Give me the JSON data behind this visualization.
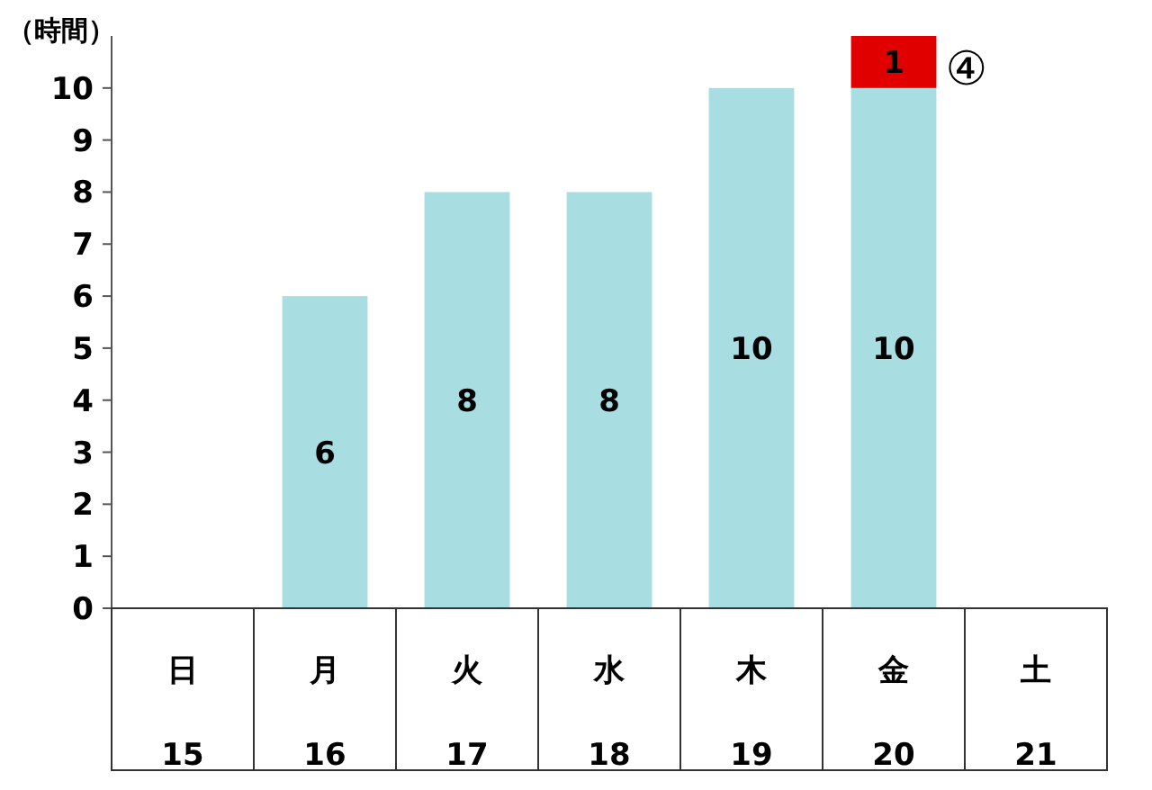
{
  "chart_data": {
    "type": "bar",
    "stacked": true,
    "ylabel": "（時間）",
    "categories": [
      "日",
      "月",
      "火",
      "水",
      "木",
      "金",
      "土"
    ],
    "series": [
      {
        "color": "#a8dde1",
        "values": [
          null,
          6,
          8,
          8,
          10,
          10,
          null
        ]
      },
      {
        "color": "#e00000",
        "values": [
          null,
          null,
          null,
          null,
          null,
          1,
          null
        ]
      }
    ],
    "ylim": [
      0,
      11
    ],
    "yticks": [
      0,
      1,
      2,
      3,
      4,
      5,
      6,
      7,
      8,
      9,
      10
    ],
    "data_labels": true,
    "grid": false,
    "annotations": [
      "④",
      "15",
      "16",
      "17",
      "18",
      "19",
      "20",
      "21"
    ]
  }
}
